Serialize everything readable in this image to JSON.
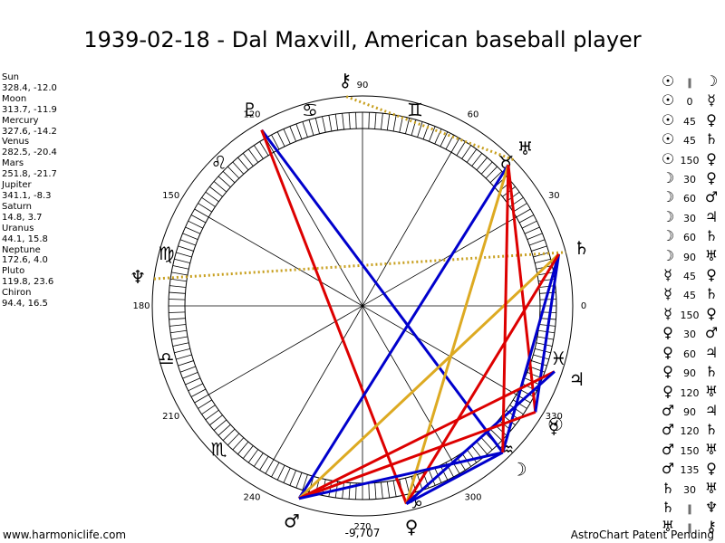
{
  "title": "1939-02-18 - Dal Maxvill, American baseball player",
  "footer_left": "www.harmoniclife.com",
  "footer_right": "AstroChart Patent Pending",
  "center_value": "-9,707",
  "degree_labels": [
    "0",
    "30",
    "60",
    "90",
    "120",
    "150",
    "180",
    "210",
    "240",
    "270",
    "300",
    "330"
  ],
  "planets": [
    {
      "name": "Sun",
      "coords": "328.4, -12.0",
      "glyph": "☉",
      "lon": 328.4
    },
    {
      "name": "Moon",
      "coords": "313.7, -11.9",
      "glyph": "☽",
      "lon": 313.7
    },
    {
      "name": "Mercury",
      "coords": "327.6, -14.2",
      "glyph": "☿",
      "lon": 327.6
    },
    {
      "name": "Venus",
      "coords": "282.5, -20.4",
      "glyph": "♀",
      "lon": 282.5
    },
    {
      "name": "Mars",
      "coords": "251.8, -21.7",
      "glyph": "♂",
      "lon": 251.8
    },
    {
      "name": "Jupiter",
      "coords": "341.1, -8.3",
      "glyph": "♃",
      "lon": 341.1
    },
    {
      "name": "Saturn",
      "coords": "14.8, 3.7",
      "glyph": "♄",
      "lon": 14.8
    },
    {
      "name": "Uranus",
      "coords": "44.1, 15.8",
      "glyph": "♅",
      "lon": 44.1
    },
    {
      "name": "Neptune",
      "coords": "172.6, 4.0",
      "glyph": "♆",
      "lon": 172.6
    },
    {
      "name": "Pluto",
      "coords": "119.8, 23.6",
      "glyph": "♇",
      "lon": 119.8
    },
    {
      "name": "Chiron",
      "coords": "94.4, 16.5",
      "glyph": "⚷",
      "lon": 94.4
    }
  ],
  "signs": [
    {
      "glyph": "♓",
      "lon": 345
    },
    {
      "glyph": "♉",
      "lon": 45
    },
    {
      "glyph": "♊",
      "lon": 75
    },
    {
      "glyph": "♋",
      "lon": 105
    },
    {
      "glyph": "♌",
      "lon": 135
    },
    {
      "glyph": "♍",
      "lon": 165
    },
    {
      "glyph": "♎",
      "lon": 195
    },
    {
      "glyph": "♏",
      "lon": 225
    },
    {
      "glyph": "♑",
      "lon": 285
    },
    {
      "glyph": "♒",
      "lon": 315
    }
  ],
  "aspects_list": [
    {
      "p1": "☉",
      "op": "∥",
      "p2": "☽"
    },
    {
      "p1": "☉",
      "op": "0",
      "p2": "☿"
    },
    {
      "p1": "☉",
      "op": "45",
      "p2": "♀"
    },
    {
      "p1": "☉",
      "op": "45",
      "p2": "♄"
    },
    {
      "p1": "☉",
      "op": "150",
      "p2": "♀"
    },
    {
      "p1": "☽",
      "op": "30",
      "p2": "♀"
    },
    {
      "p1": "☽",
      "op": "60",
      "p2": "♂"
    },
    {
      "p1": "☽",
      "op": "30",
      "p2": "♃"
    },
    {
      "p1": "☽",
      "op": "60",
      "p2": "♄"
    },
    {
      "p1": "☽",
      "op": "90",
      "p2": "♅"
    },
    {
      "p1": "☿",
      "op": "45",
      "p2": "♀"
    },
    {
      "p1": "☿",
      "op": "45",
      "p2": "♄"
    },
    {
      "p1": "☿",
      "op": "150",
      "p2": "♀"
    },
    {
      "p1": "♀",
      "op": "30",
      "p2": "♂"
    },
    {
      "p1": "♀",
      "op": "60",
      "p2": "♃"
    },
    {
      "p1": "♀",
      "op": "90",
      "p2": "♄"
    },
    {
      "p1": "♀",
      "op": "120",
      "p2": "♅"
    },
    {
      "p1": "♂",
      "op": "90",
      "p2": "♃"
    },
    {
      "p1": "♂",
      "op": "120",
      "p2": "♄"
    },
    {
      "p1": "♂",
      "op": "150",
      "p2": "♅"
    },
    {
      "p1": "♂",
      "op": "135",
      "p2": "♀"
    },
    {
      "p1": "♄",
      "op": "30",
      "p2": "♅"
    },
    {
      "p1": "♄",
      "op": "∥",
      "p2": "♆"
    },
    {
      "p1": "♅",
      "op": "∥",
      "p2": "⚷"
    }
  ],
  "aspect_lines": [
    {
      "a": "Pluto",
      "b": "Moon",
      "color": "#0000cc"
    },
    {
      "a": "Pluto",
      "b": "Venus",
      "color": "#dd0000"
    },
    {
      "a": "Uranus",
      "b": "Mars",
      "color": "#0000cc"
    },
    {
      "a": "Uranus",
      "b": "Sun",
      "color": "#dd0000"
    },
    {
      "a": "Uranus",
      "b": "Venus",
      "color": "#ddaa22"
    },
    {
      "a": "Saturn",
      "b": "Mars",
      "color": "#ddaa22"
    },
    {
      "a": "Saturn",
      "b": "Sun",
      "color": "#0000cc"
    },
    {
      "a": "Saturn",
      "b": "Moon",
      "color": "#0000cc"
    },
    {
      "a": "Saturn",
      "b": "Venus",
      "color": "#dd0000"
    },
    {
      "a": "Jupiter",
      "b": "Mars",
      "color": "#dd0000"
    },
    {
      "a": "Jupiter",
      "b": "Venus",
      "color": "#0000cc"
    },
    {
      "a": "Sun",
      "b": "Mars",
      "color": "#dd0000"
    },
    {
      "a": "Moon",
      "b": "Venus",
      "color": "#0000cc"
    },
    {
      "a": "Moon",
      "b": "Mars",
      "color": "#0000cc"
    },
    {
      "a": "Uranus",
      "b": "Moon",
      "color": "#dd0000"
    }
  ],
  "dotted_lines": [
    {
      "a": "Chiron",
      "b": "Uranus",
      "color": "#c8a020"
    },
    {
      "a": "Neptune",
      "b": "Saturn",
      "color": "#c8a020"
    }
  ]
}
